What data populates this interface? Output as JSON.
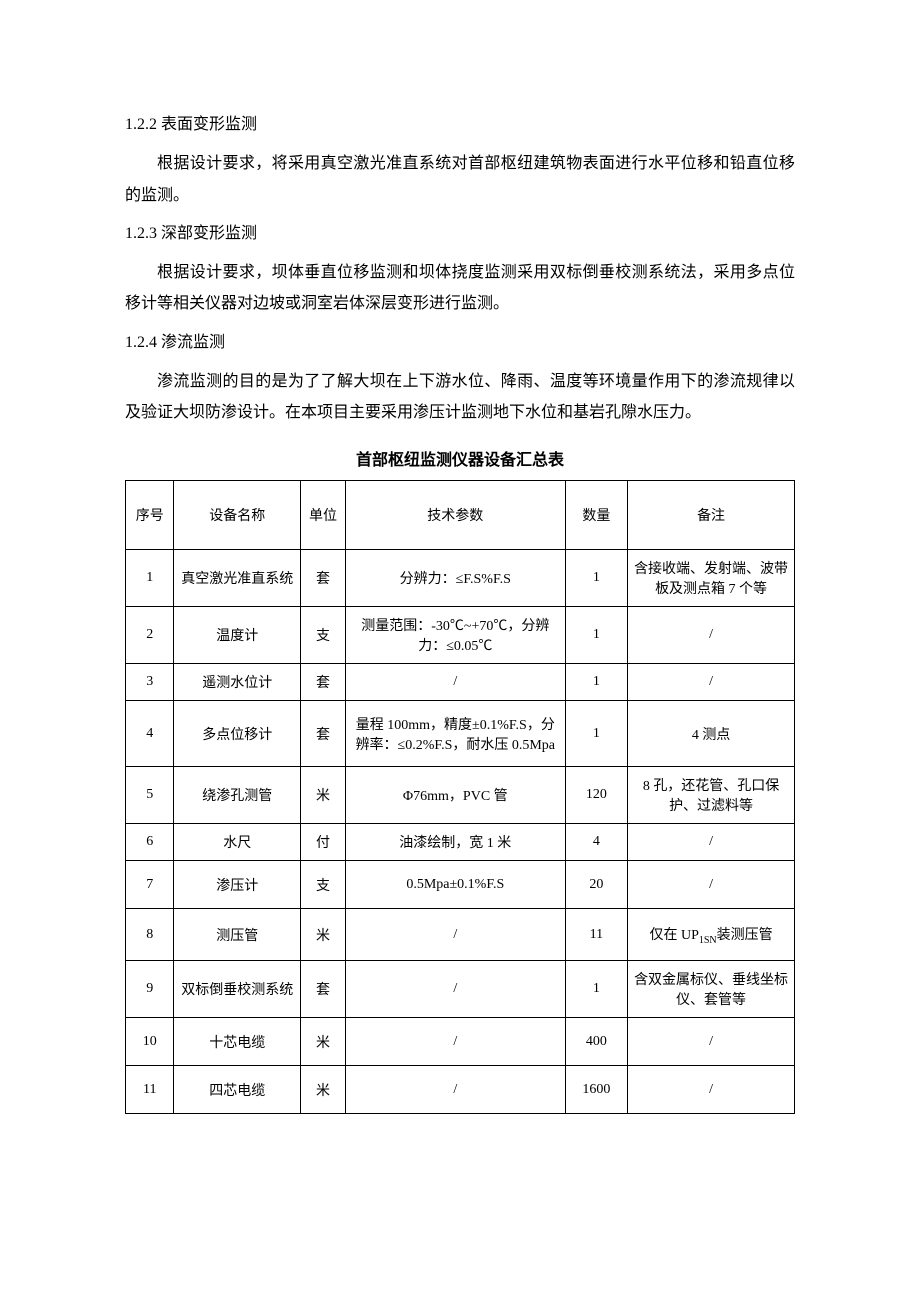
{
  "sections": [
    {
      "heading": "1.2.2 表面变形监测",
      "paragraph": "根据设计要求，将采用真空激光准直系统对首部枢纽建筑物表面进行水平位移和铅直位移的监测。"
    },
    {
      "heading": "1.2.3 深部变形监测",
      "paragraph": "根据设计要求，坝体垂直位移监测和坝体挠度监测采用双标倒垂校测系统法，采用多点位移计等相关仪器对边坡或洞室岩体深层变形进行监测。"
    },
    {
      "heading": "1.2.4 渗流监测",
      "paragraph": "渗流监测的目的是为了了解大坝在上下游水位、降雨、温度等环境量作用下的渗流规律以及验证大坝防渗设计。在本项目主要采用渗压计监测地下水位和基岩孔隙水压力。"
    }
  ],
  "table_title": "首部枢纽监测仪器设备汇总表",
  "columns": [
    "序号",
    "设备名称",
    "单位",
    "技术参数",
    "数量",
    "备注"
  ],
  "rows": [
    {
      "idx": "1",
      "name": "真空激光准直系统",
      "unit": "套",
      "spec": "分辨力：≤F.S%F.S",
      "qty": "1",
      "note": "含接收端、发射端、波带板及测点箱 7 个等"
    },
    {
      "idx": "2",
      "name": "温度计",
      "unit": "支",
      "spec": "测量范围：-30℃~+70℃，分辨力：≤0.05℃",
      "qty": "1",
      "note": "/"
    },
    {
      "idx": "3",
      "name": "遥测水位计",
      "unit": "套",
      "spec": "/",
      "qty": "1",
      "note": "/"
    },
    {
      "idx": "4",
      "name": "多点位移计",
      "unit": "套",
      "spec": "量程 100mm，精度±0.1%F.S，分辨率：≤0.2%F.S，耐水压 0.5Mpa",
      "qty": "1",
      "note": "4 测点"
    },
    {
      "idx": "5",
      "name": "绕渗孔测管",
      "unit": "米",
      "spec": "Φ76mm，PVC 管",
      "qty": "120",
      "note": "8 孔，还花管、孔口保护、过滤料等"
    },
    {
      "idx": "6",
      "name": "水尺",
      "unit": "付",
      "spec": "油漆绘制，宽 1 米",
      "qty": "4",
      "note": "/"
    },
    {
      "idx": "7",
      "name": "渗压计",
      "unit": "支",
      "spec": "0.5Mpa±0.1%F.S",
      "qty": "20",
      "note": "/"
    },
    {
      "idx": "8",
      "name": "测压管",
      "unit": "米",
      "spec": "/",
      "qty": "11",
      "note_prefix": "仅在 UP",
      "note_sub": "1SN",
      "note_suffix": "装测压管"
    },
    {
      "idx": "9",
      "name": "双标倒垂校测系统",
      "unit": "套",
      "spec": "/",
      "qty": "1",
      "note": "含双金属标仪、垂线坐标仪、套管等"
    },
    {
      "idx": "10",
      "name": "十芯电缆",
      "unit": "米",
      "spec": "/",
      "qty": "400",
      "note": "/"
    },
    {
      "idx": "11",
      "name": "四芯电缆",
      "unit": "米",
      "spec": "/",
      "qty": "1600",
      "note": "/"
    }
  ],
  "row_heights": [
    "44",
    "44",
    "30",
    "66",
    "44",
    "32",
    "48",
    "52",
    "44",
    "48",
    "48"
  ]
}
